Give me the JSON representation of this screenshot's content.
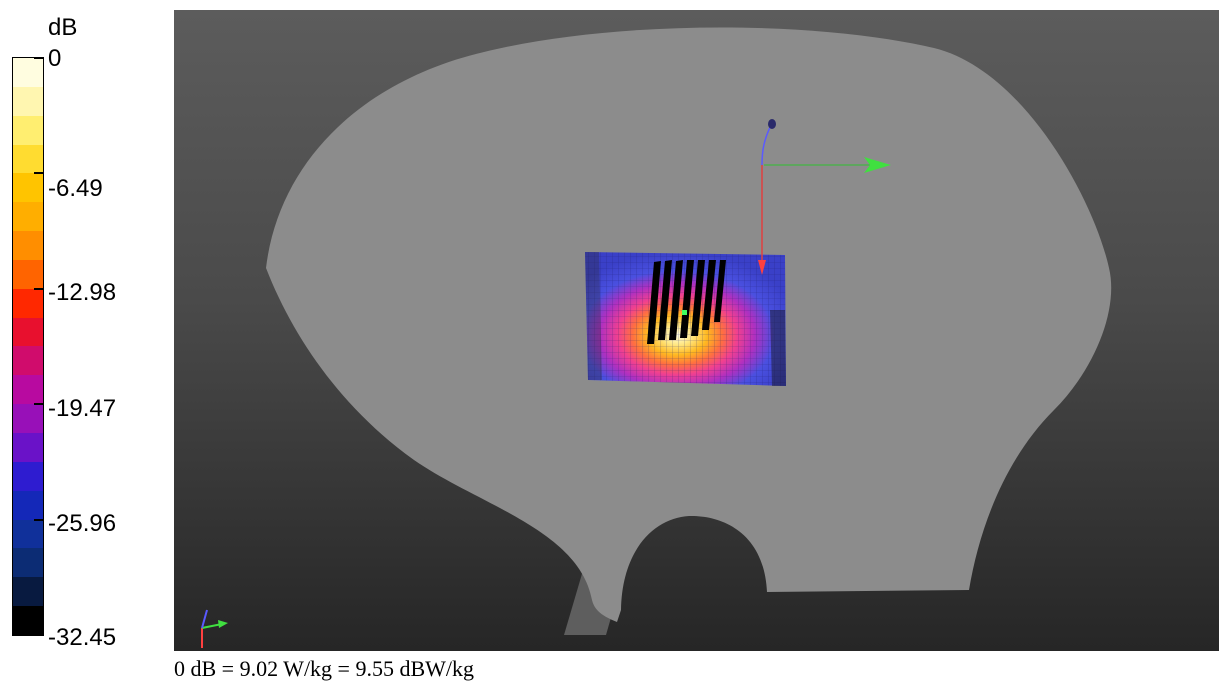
{
  "legend": {
    "unit": "dB",
    "ticks": [
      "0",
      "-6.49",
      "-12.98",
      "-19.47",
      "-25.96",
      "-32.45"
    ],
    "swatch_colors": [
      "#fffde0",
      "#fff6b0",
      "#ffee70",
      "#ffdc30",
      "#ffc400",
      "#ffae00",
      "#ff8e00",
      "#ff6400",
      "#ff2800",
      "#e8102e",
      "#d00c6c",
      "#b80aa0",
      "#9810b8",
      "#6a12c8",
      "#2e1cd0",
      "#1428b8",
      "#10309a",
      "#0c2c74",
      "#081a40",
      "#000000"
    ]
  },
  "viewport": {
    "background": "#4a4a4a",
    "phantom_color": "#8c8c8c",
    "icons": [
      "axis-triad-icon",
      "probe-icon",
      "antenna-icon"
    ]
  },
  "footer": {
    "text": "0 dB = 9.02 W/kg = 9.55 dBW/kg"
  }
}
